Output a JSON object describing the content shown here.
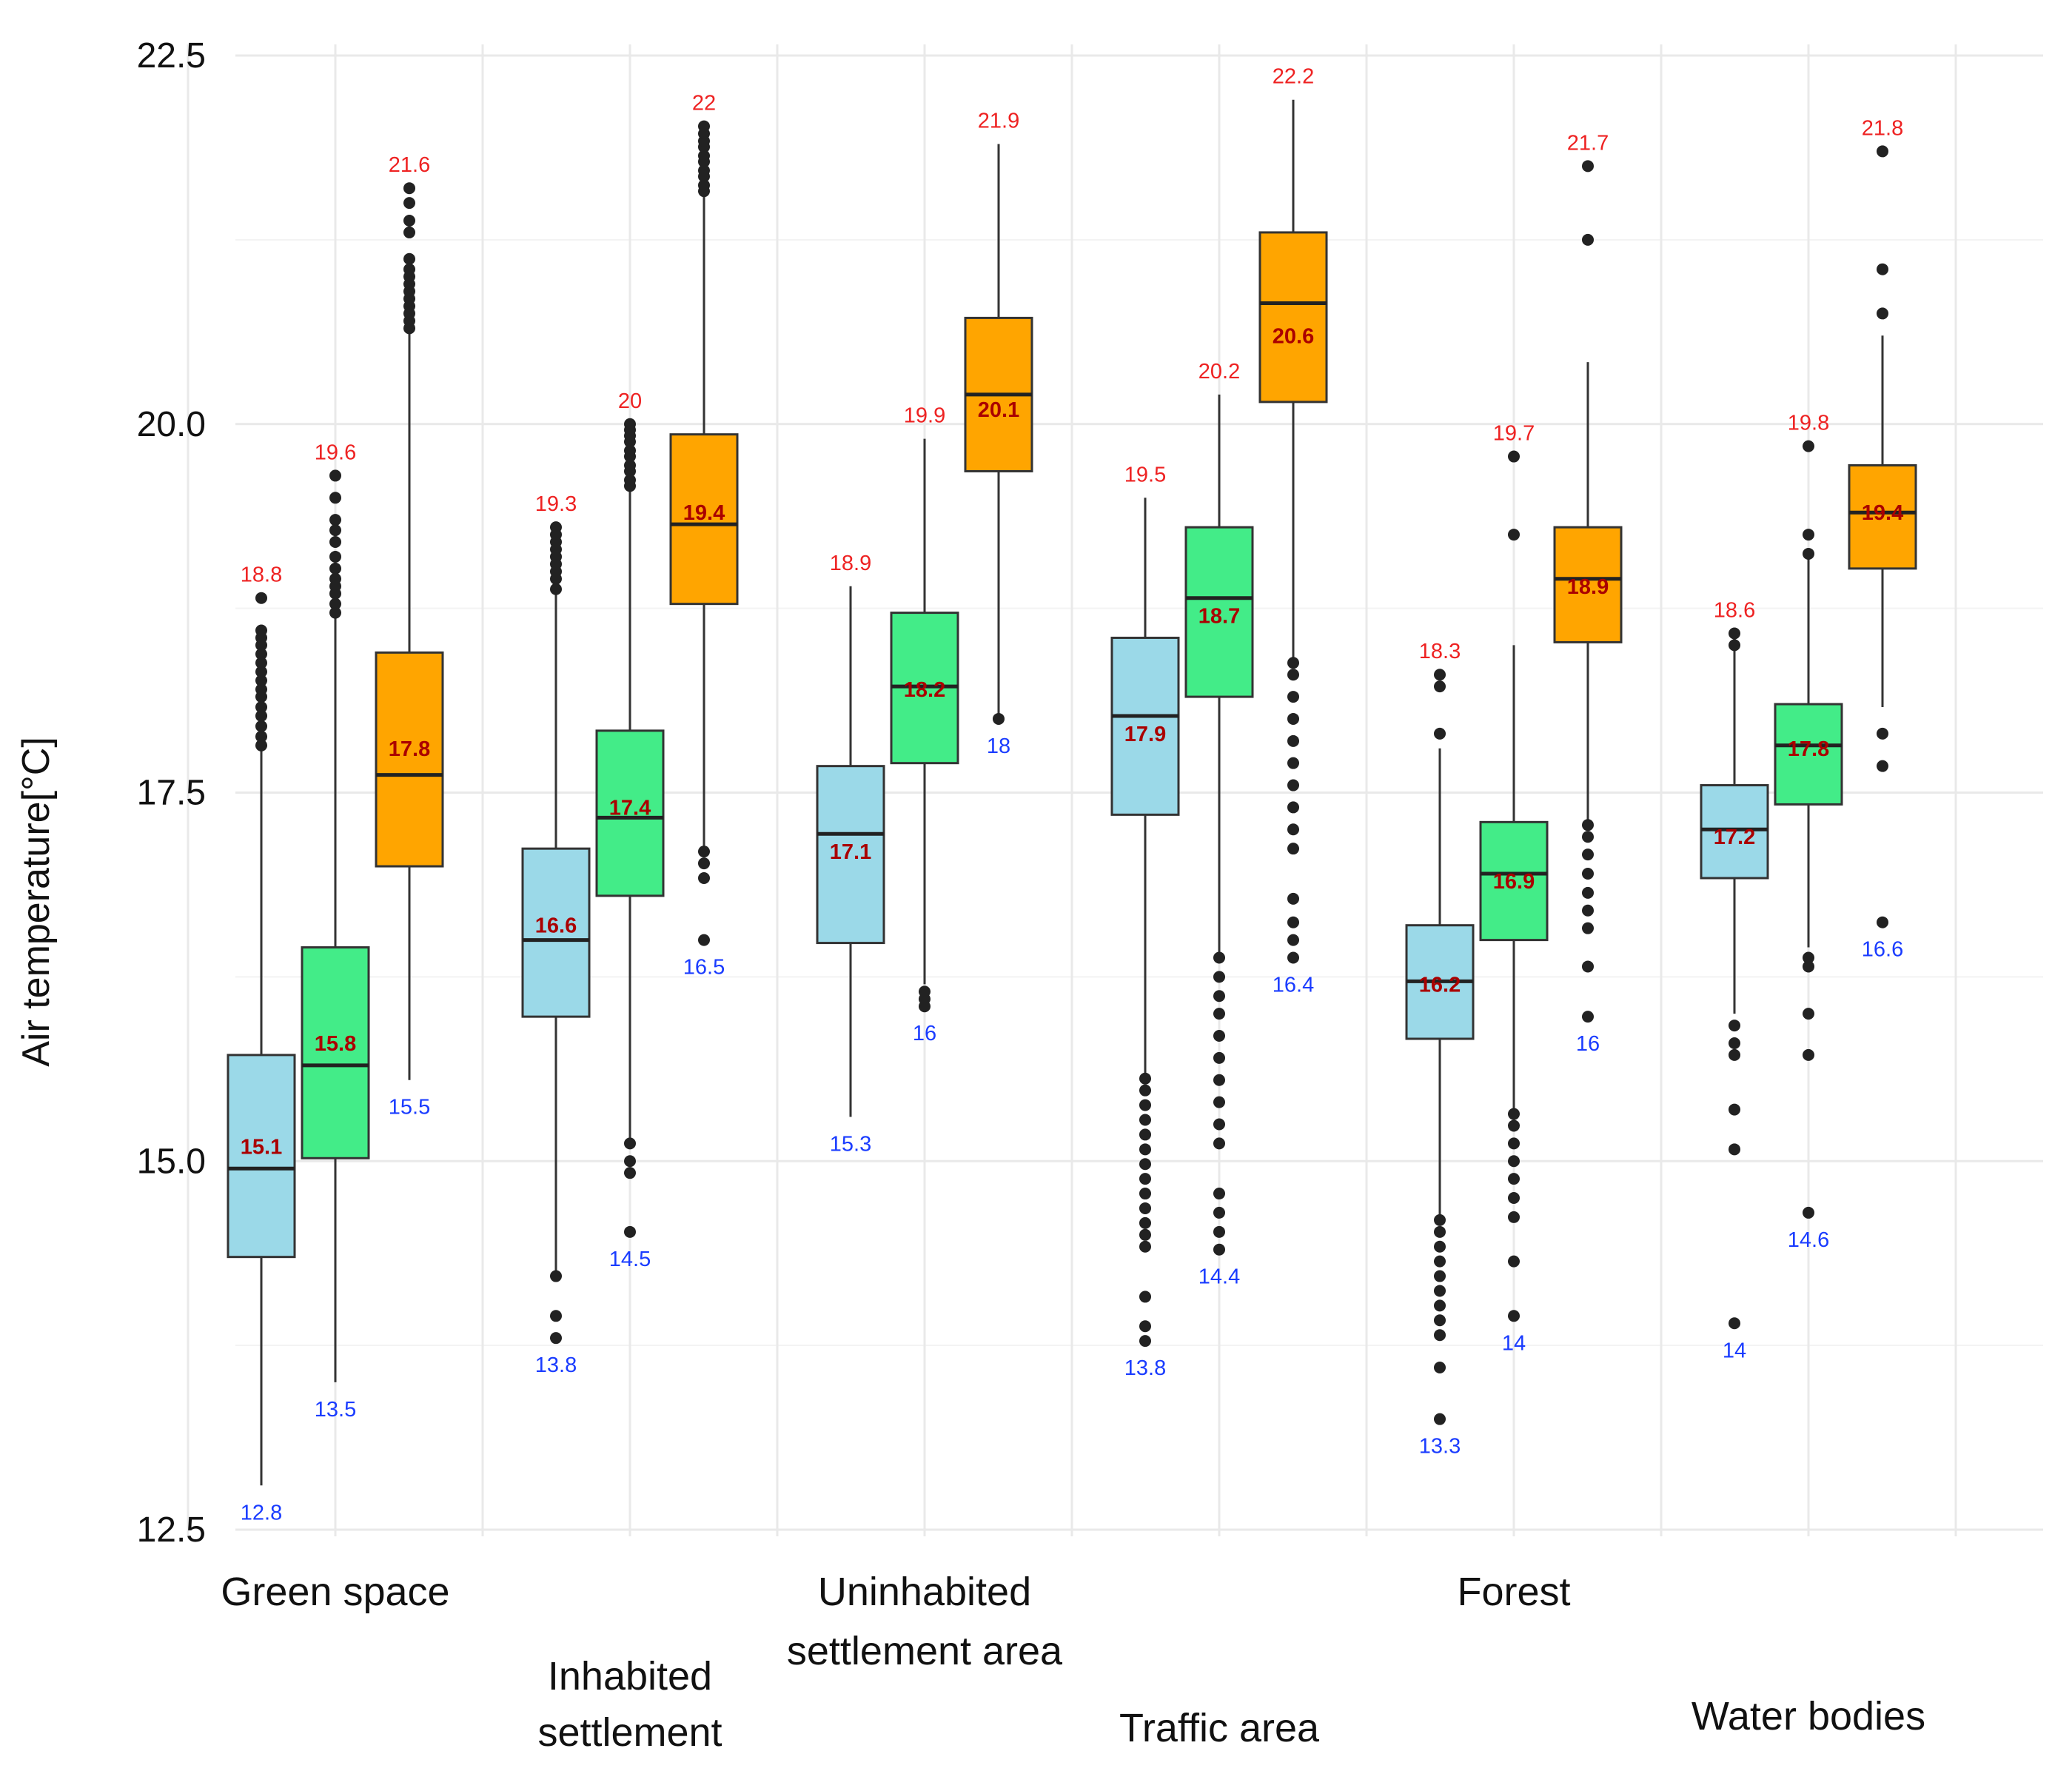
{
  "chart_data": {
    "type": "boxplot",
    "ylabel": "Air temperature[°C]",
    "xlabel": "",
    "ylim": [
      12.5,
      22.5
    ],
    "yticks": [
      "12.5",
      "15.0",
      "17.5",
      "20.0",
      "22.5"
    ],
    "series_colors": [
      "#9bd9e8",
      "#43ec88",
      "#ffa500"
    ],
    "categories": [
      {
        "label_lines": [
          "Green space"
        ],
        "boxes": [
          {
            "q1": 14.35,
            "median": 14.95,
            "q3": 15.72,
            "whisker_low": 12.8,
            "whisker_high": 17.8,
            "min_label": "12.8",
            "max_label": "18.8",
            "mean_label": "15.1",
            "outliers": [
              17.82,
              17.88,
              17.95,
              18.02,
              18.08,
              18.15,
              18.2,
              18.26,
              18.32,
              18.38,
              18.44,
              18.5,
              18.55,
              18.6,
              18.82
            ]
          },
          {
            "q1": 15.02,
            "median": 15.65,
            "q3": 16.45,
            "whisker_low": 13.5,
            "whisker_high": 18.7,
            "min_label": "13.5",
            "max_label": "19.6",
            "mean_label": "15.8",
            "outliers": [
              18.72,
              18.78,
              18.85,
              18.9,
              18.95,
              19.02,
              19.1,
              19.2,
              19.28,
              19.35,
              19.5,
              19.65
            ]
          },
          {
            "q1": 17.0,
            "median": 17.62,
            "q3": 18.45,
            "whisker_low": 15.55,
            "whisker_high": 20.62,
            "min_label": "15.5",
            "max_label": "21.6",
            "mean_label": "17.8",
            "outliers": [
              20.65,
              20.7,
              20.75,
              20.8,
              20.85,
              20.9,
              20.95,
              21.0,
              21.05,
              21.12,
              21.3,
              21.38,
              21.5,
              21.6
            ]
          }
        ]
      },
      {
        "label_lines": [
          "Inhabited",
          "settlement"
        ],
        "boxes": [
          {
            "q1": 15.98,
            "median": 16.5,
            "q3": 17.12,
            "whisker_low": 14.2,
            "whisker_high": 18.85,
            "min_label": "13.8",
            "max_label": "19.3",
            "mean_label": "16.6",
            "outliers": [
              13.8,
              13.95,
              14.22,
              18.88,
              18.95,
              19.0,
              19.05,
              19.1,
              19.15,
              19.2,
              19.25,
              19.3
            ]
          },
          {
            "q1": 16.8,
            "median": 17.33,
            "q3": 17.92,
            "whisker_low": 15.15,
            "whisker_high": 19.55,
            "min_label": "14.5",
            "max_label": "20",
            "mean_label": "17.4",
            "outliers": [
              14.52,
              14.92,
              15.0,
              15.12,
              19.58,
              19.62,
              19.68,
              19.72,
              19.78,
              19.82,
              19.88,
              19.92,
              19.96,
              20.0
            ]
          },
          {
            "q1": 18.78,
            "median": 19.32,
            "q3": 19.93,
            "whisker_low": 17.1,
            "whisker_high": 21.55,
            "min_label": "16.5",
            "max_label": "22",
            "mean_label": "19.4",
            "outliers": [
              16.5,
              16.92,
              17.02,
              17.1,
              21.58,
              21.62,
              21.68,
              21.72,
              21.78,
              21.82,
              21.88,
              21.92,
              21.97,
              22.02
            ]
          }
        ]
      },
      {
        "label_lines": [
          "Uninhabited",
          "settlement area"
        ],
        "boxes": [
          {
            "q1": 16.48,
            "median": 17.22,
            "q3": 17.68,
            "whisker_low": 15.3,
            "whisker_high": 18.9,
            "min_label": "15.3",
            "max_label": "18.9",
            "mean_label": "17.1",
            "outliers": []
          },
          {
            "q1": 17.7,
            "median": 18.22,
            "q3": 18.72,
            "whisker_low": 16.2,
            "whisker_high": 19.9,
            "min_label": "16",
            "max_label": "19.9",
            "mean_label": "18.2",
            "outliers": [
              16.05,
              16.1,
              16.15
            ]
          },
          {
            "q1": 19.68,
            "median": 20.2,
            "q3": 20.72,
            "whisker_low": 18.0,
            "whisker_high": 21.9,
            "min_label": "18",
            "max_label": "21.9",
            "mean_label": "20.1",
            "outliers": [
              18.0
            ]
          }
        ]
      },
      {
        "label_lines": [
          "Traffic area"
        ],
        "boxes": [
          {
            "q1": 17.35,
            "median": 18.02,
            "q3": 18.55,
            "whisker_low": 15.58,
            "whisker_high": 19.5,
            "min_label": "13.8",
            "max_label": "19.5",
            "mean_label": "17.9",
            "outliers": [
              13.78,
              13.88,
              14.08,
              14.42,
              14.5,
              14.58,
              14.68,
              14.78,
              14.88,
              14.98,
              15.08,
              15.18,
              15.28,
              15.38,
              15.48,
              15.56
            ]
          },
          {
            "q1": 18.15,
            "median": 18.82,
            "q3": 19.3,
            "whisker_low": 16.4,
            "whisker_high": 20.2,
            "min_label": "14.4",
            "max_label": "20.2",
            "mean_label": "18.7",
            "outliers": [
              14.4,
              14.52,
              14.65,
              14.78,
              15.12,
              15.25,
              15.4,
              15.55,
              15.7,
              15.85,
              16.0,
              16.12,
              16.25,
              16.38
            ]
          },
          {
            "q1": 20.15,
            "median": 20.82,
            "q3": 21.3,
            "whisker_low": 18.4,
            "whisker_high": 22.2,
            "min_label": "16.4",
            "max_label": "22.2",
            "mean_label": "20.6",
            "outliers": [
              16.38,
              16.5,
              16.62,
              16.78,
              17.12,
              17.25,
              17.4,
              17.55,
              17.7,
              17.85,
              18.0,
              18.15,
              18.3,
              18.38
            ]
          }
        ]
      },
      {
        "label_lines": [
          "Forest"
        ],
        "boxes": [
          {
            "q1": 15.83,
            "median": 16.22,
            "q3": 16.6,
            "whisker_low": 14.6,
            "whisker_high": 17.8,
            "min_label": "13.3",
            "max_label": "18.3",
            "mean_label": "16.2",
            "outliers": [
              13.25,
              13.6,
              13.82,
              13.92,
              14.02,
              14.12,
              14.22,
              14.32,
              14.42,
              14.52,
              14.6,
              17.9,
              18.22,
              18.3
            ]
          },
          {
            "q1": 16.5,
            "median": 16.95,
            "q3": 17.3,
            "whisker_low": 15.35,
            "whisker_high": 18.5,
            "min_label": "14",
            "max_label": "19.7",
            "mean_label": "16.9",
            "outliers": [
              13.95,
              14.32,
              14.62,
              14.75,
              14.88,
              15.0,
              15.12,
              15.24,
              15.32,
              19.25,
              19.78
            ]
          },
          {
            "q1": 18.52,
            "median": 18.95,
            "q3": 19.3,
            "whisker_low": 17.3,
            "whisker_high": 20.42,
            "min_label": "16",
            "max_label": "21.7",
            "mean_label": "18.9",
            "outliers": [
              15.98,
              16.32,
              16.58,
              16.7,
              16.82,
              16.95,
              17.08,
              17.2,
              17.28,
              21.25,
              21.75
            ]
          }
        ]
      },
      {
        "label_lines": [
          "Water bodies"
        ],
        "boxes": [
          {
            "q1": 16.92,
            "median": 17.25,
            "q3": 17.55,
            "whisker_low": 16.0,
            "whisker_high": 18.55,
            "min_label": "14",
            "max_label": "18.6",
            "mean_label": "17.2",
            "outliers": [
              13.9,
              15.08,
              15.35,
              15.72,
              15.8,
              15.92,
              18.5,
              18.58
            ]
          },
          {
            "q1": 17.42,
            "median": 17.82,
            "q3": 18.1,
            "whisker_low": 16.45,
            "whisker_high": 19.1,
            "min_label": "14.6",
            "max_label": "19.8",
            "mean_label": "17.8",
            "outliers": [
              14.65,
              15.72,
              16.0,
              16.32,
              16.38,
              19.12,
              19.25,
              19.85
            ]
          },
          {
            "q1": 19.02,
            "median": 19.4,
            "q3": 19.72,
            "whisker_low": 18.08,
            "whisker_high": 20.6,
            "min_label": "16.6",
            "max_label": "21.8",
            "mean_label": "19.4",
            "outliers": [
              16.62,
              17.68,
              17.9,
              20.75,
              21.05,
              21.85
            ]
          }
        ]
      }
    ]
  }
}
